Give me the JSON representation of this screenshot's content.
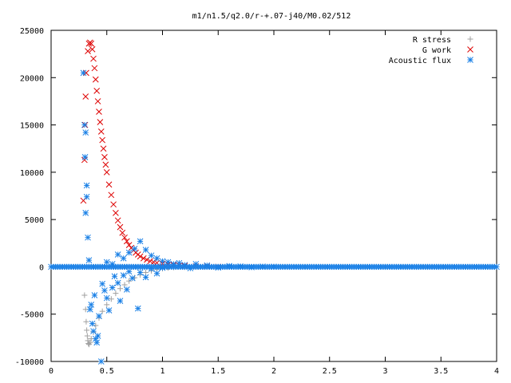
{
  "chart_data": {
    "type": "scatter",
    "title": "m1/n1.5/q2.0/r-+.07-j40/M0.02/512",
    "xlabel": "",
    "ylabel": "",
    "xlim": [
      0,
      4
    ],
    "ylim": [
      -10000,
      25000
    ],
    "x_ticks": [
      "0",
      "0.5",
      "1",
      "1.5",
      "2",
      "2.5",
      "3",
      "3.5",
      "4"
    ],
    "y_ticks": [
      "-10000",
      "-5000",
      "0",
      "5000",
      "10000",
      "15000",
      "20000",
      "25000"
    ],
    "grid": false,
    "legend_position": "top-right",
    "series": [
      {
        "name": "R stress",
        "marker": "plus",
        "color": "#a0a0a0",
        "points": [
          [
            0.3,
            -3000
          ],
          [
            0.31,
            -4500
          ],
          [
            0.315,
            -5800
          ],
          [
            0.32,
            -6700
          ],
          [
            0.325,
            -7300
          ],
          [
            0.33,
            -7800
          ],
          [
            0.335,
            -8100
          ],
          [
            0.34,
            -8200
          ],
          [
            0.35,
            -8000
          ],
          [
            0.36,
            -7600
          ],
          [
            0.38,
            -6900
          ],
          [
            0.4,
            -6200
          ],
          [
            0.43,
            -5400
          ],
          [
            0.46,
            -4700
          ],
          [
            0.5,
            -4000
          ],
          [
            0.54,
            -3400
          ],
          [
            0.58,
            -2800
          ],
          [
            0.62,
            -2300
          ],
          [
            0.66,
            -1900
          ],
          [
            0.7,
            -1500
          ],
          [
            0.75,
            -1150
          ],
          [
            0.8,
            -850
          ],
          [
            0.85,
            -600
          ],
          [
            0.9,
            -420
          ],
          [
            0.95,
            -280
          ],
          [
            1.0,
            -180
          ],
          [
            1.05,
            -110
          ],
          [
            1.1,
            -60
          ],
          [
            1.2,
            -25
          ],
          [
            1.3,
            -10
          ],
          [
            1.5,
            0
          ]
        ]
      },
      {
        "name": "G work",
        "marker": "cross",
        "color": "#dd0000",
        "points": [
          [
            0.29,
            7000
          ],
          [
            0.3,
            11300
          ],
          [
            0.305,
            15000
          ],
          [
            0.31,
            18000
          ],
          [
            0.315,
            20500
          ],
          [
            0.33,
            22800
          ],
          [
            0.34,
            23600
          ],
          [
            0.35,
            23700
          ],
          [
            0.36,
            23600
          ],
          [
            0.37,
            23000
          ],
          [
            0.38,
            22000
          ],
          [
            0.39,
            21000
          ],
          [
            0.4,
            19800
          ],
          [
            0.41,
            18600
          ],
          [
            0.42,
            17500
          ],
          [
            0.43,
            16400
          ],
          [
            0.44,
            15300
          ],
          [
            0.45,
            14300
          ],
          [
            0.46,
            13400
          ],
          [
            0.47,
            12500
          ],
          [
            0.48,
            11600
          ],
          [
            0.49,
            10800
          ],
          [
            0.5,
            10000
          ],
          [
            0.52,
            8700
          ],
          [
            0.54,
            7600
          ],
          [
            0.56,
            6600
          ],
          [
            0.58,
            5700
          ],
          [
            0.6,
            4900
          ],
          [
            0.62,
            4200
          ],
          [
            0.64,
            3600
          ],
          [
            0.66,
            3100
          ],
          [
            0.68,
            2700
          ],
          [
            0.7,
            2300
          ],
          [
            0.72,
            2000
          ],
          [
            0.74,
            1750
          ],
          [
            0.76,
            1500
          ],
          [
            0.78,
            1300
          ],
          [
            0.8,
            1100
          ],
          [
            0.83,
            900
          ],
          [
            0.86,
            750
          ],
          [
            0.89,
            600
          ],
          [
            0.92,
            500
          ],
          [
            0.95,
            420
          ],
          [
            1.0,
            330
          ],
          [
            1.05,
            260
          ],
          [
            1.1,
            200
          ],
          [
            1.15,
            150
          ],
          [
            1.2,
            110
          ],
          [
            1.3,
            60
          ],
          [
            1.4,
            30
          ],
          [
            1.5,
            10
          ]
        ]
      },
      {
        "name": "Acoustic flux",
        "marker": "star",
        "color": "#1a80e6",
        "points": [
          [
            0.29,
            20500
          ],
          [
            0.3,
            15000
          ],
          [
            0.31,
            14200
          ],
          [
            0.305,
            11600
          ],
          [
            0.32,
            8600
          ],
          [
            0.32,
            7400
          ],
          [
            0.31,
            5700
          ],
          [
            0.33,
            3100
          ],
          [
            0.34,
            700
          ],
          [
            0.35,
            -4500
          ],
          [
            0.37,
            -6000
          ],
          [
            0.38,
            -6800
          ],
          [
            0.4,
            -7600
          ],
          [
            0.41,
            -8000
          ],
          [
            0.42,
            -7300
          ],
          [
            0.45,
            -10000
          ],
          [
            0.36,
            -4000
          ],
          [
            0.39,
            -3000
          ],
          [
            0.43,
            -5200
          ],
          [
            0.46,
            -1800
          ],
          [
            0.48,
            -2500
          ],
          [
            0.5,
            -3300
          ],
          [
            0.52,
            -4600
          ],
          [
            0.55,
            -2200
          ],
          [
            0.57,
            -1000
          ],
          [
            0.6,
            -1700
          ],
          [
            0.62,
            -3600
          ],
          [
            0.65,
            -900
          ],
          [
            0.68,
            -2400
          ],
          [
            0.7,
            -500
          ],
          [
            0.73,
            -1200
          ],
          [
            0.78,
            -4400
          ],
          [
            0.8,
            -600
          ],
          [
            0.85,
            -1100
          ],
          [
            0.9,
            -200
          ],
          [
            0.95,
            -700
          ],
          [
            1.0,
            -100
          ],
          [
            0.5,
            500
          ],
          [
            0.55,
            300
          ],
          [
            0.6,
            1300
          ],
          [
            0.65,
            900
          ],
          [
            0.7,
            1500
          ],
          [
            0.75,
            1900
          ],
          [
            0.8,
            2700
          ],
          [
            0.85,
            1800
          ],
          [
            0.9,
            1200
          ],
          [
            0.95,
            900
          ],
          [
            1.0,
            600
          ],
          [
            1.05,
            500
          ],
          [
            1.1,
            300
          ],
          [
            1.15,
            400
          ],
          [
            1.2,
            200
          ],
          [
            1.25,
            -150
          ],
          [
            1.3,
            300
          ],
          [
            1.4,
            150
          ],
          [
            1.5,
            -80
          ],
          [
            1.6,
            90
          ],
          [
            1.7,
            50
          ],
          [
            1.8,
            -40
          ],
          [
            1.9,
            30
          ],
          [
            2.0,
            20
          ]
        ]
      }
    ]
  }
}
